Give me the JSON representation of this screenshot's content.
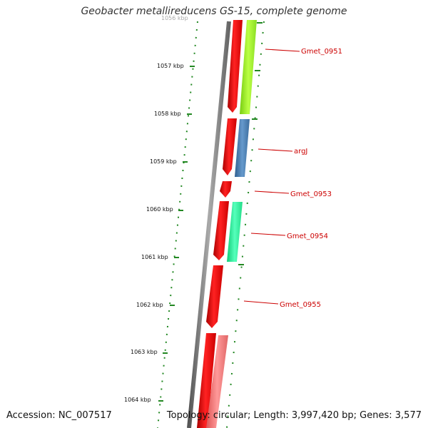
{
  "title": "Geobacter metallireducens GS-15, complete genome",
  "footer": {
    "accession": "Accession: NC_007517",
    "summary": "Topology: circular; Length: 3,997,420 bp; Genes: 3,577"
  },
  "scale": {
    "ticks": [
      {
        "label": "1056 kbp"
      },
      {
        "label": "1057 kbp"
      },
      {
        "label": "1058 kbp"
      },
      {
        "label": "1059 kbp"
      },
      {
        "label": "1060 kbp"
      },
      {
        "label": "1061 kbp"
      },
      {
        "label": "1062 kbp"
      },
      {
        "label": "1063 kbp"
      },
      {
        "label": "1064 kbp"
      }
    ]
  },
  "gene_labels": [
    {
      "text": "Gmet_0951"
    },
    {
      "text": "argJ"
    },
    {
      "text": "Gmet_0953"
    },
    {
      "text": "Gmet_0954"
    },
    {
      "text": "Gmet_0955"
    }
  ],
  "colors": {
    "backbone": "#777777",
    "cds_red": "#ee0000",
    "gmet_0951": "#99ee22",
    "argJ": "#4a7fb0",
    "gmet_0954": "#22ee99",
    "pink_gene": "#ee7777",
    "tick_green": "#228822",
    "label_red": "#cc0000"
  }
}
